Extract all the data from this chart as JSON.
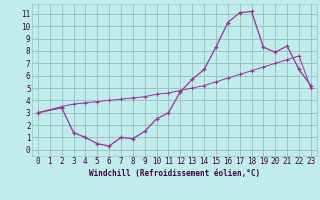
{
  "xlabel": "Windchill (Refroidissement éolien,°C)",
  "bg_color": "#c0ecec",
  "grid_color": "#98c4c8",
  "line_color": "#993399",
  "xlim": [
    -0.5,
    23.5
  ],
  "ylim": [
    -0.5,
    11.8
  ],
  "xticks": [
    0,
    1,
    2,
    3,
    4,
    5,
    6,
    7,
    8,
    9,
    10,
    11,
    12,
    13,
    14,
    15,
    16,
    17,
    18,
    19,
    20,
    21,
    22,
    23
  ],
  "yticks": [
    0,
    1,
    2,
    3,
    4,
    5,
    6,
    7,
    8,
    9,
    10,
    11
  ],
  "line1_x": [
    0,
    2,
    3,
    4,
    5,
    6,
    7,
    8,
    9,
    10,
    11,
    12,
    13,
    14,
    15,
    16,
    17,
    18,
    19,
    20,
    21,
    22,
    23
  ],
  "line1_y": [
    3.0,
    3.4,
    1.4,
    1.0,
    0.5,
    0.3,
    1.0,
    0.9,
    1.5,
    2.5,
    3.0,
    4.7,
    5.7,
    6.5,
    8.3,
    10.3,
    11.1,
    11.2,
    8.3,
    7.9,
    8.4,
    6.5,
    5.2
  ],
  "line2_x": [
    0,
    2,
    3,
    4,
    5,
    6,
    7,
    8,
    9,
    10,
    11,
    12,
    13,
    14,
    15,
    16,
    17,
    18,
    19,
    20,
    21,
    22,
    23
  ],
  "line2_y": [
    3.0,
    3.5,
    3.7,
    3.8,
    3.9,
    4.0,
    4.1,
    4.2,
    4.3,
    4.5,
    4.6,
    4.8,
    5.0,
    5.2,
    5.5,
    5.8,
    6.1,
    6.4,
    6.7,
    7.0,
    7.3,
    7.6,
    5.0
  ],
  "label_fontsize": 5.5,
  "tick_fontsize": 5.5
}
